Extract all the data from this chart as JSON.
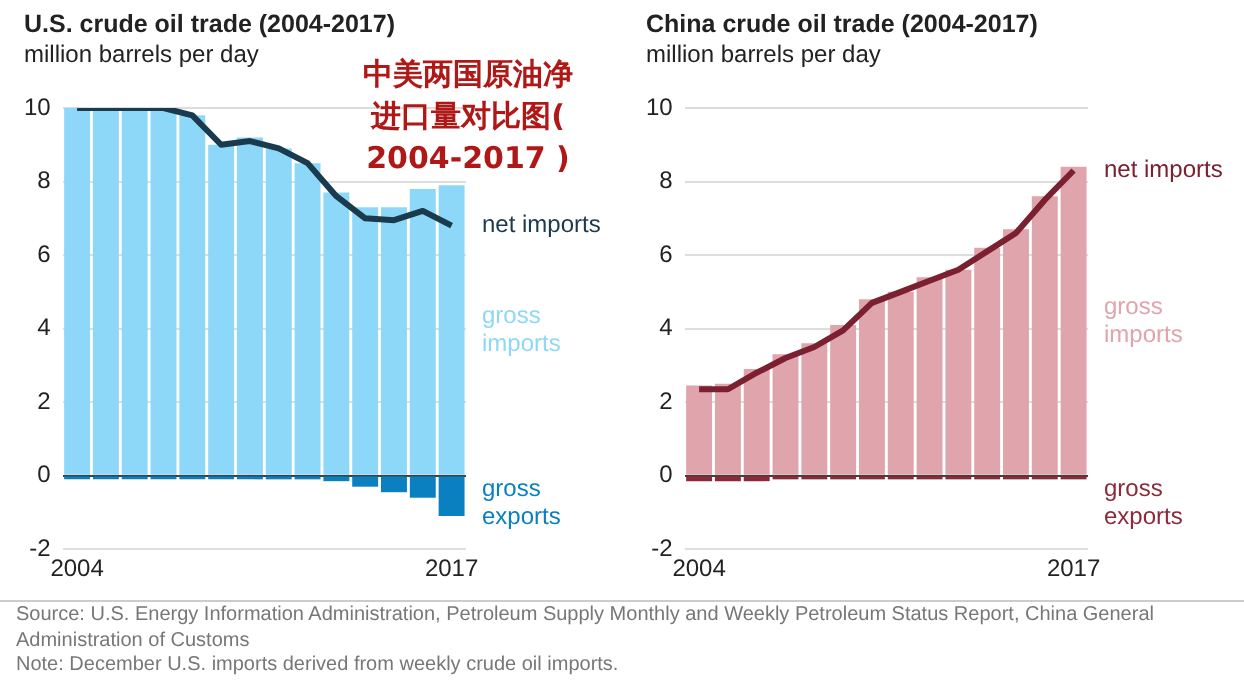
{
  "chart_data": [
    {
      "type": "bar",
      "title": "U.S. crude oil trade (2004-2017)",
      "subtitle": "million barrels per day",
      "annotations": [
        "中美两国原油净进口量对比图( 2004-2017 )"
      ],
      "categories": [
        "2004",
        null,
        null,
        null,
        null,
        null,
        null,
        null,
        null,
        null,
        null,
        null,
        null,
        "2017"
      ],
      "stacked": true,
      "ylim": [
        -2,
        10
      ],
      "yticks": [
        -2,
        0,
        2,
        4,
        6,
        8,
        10
      ],
      "grid": "y",
      "legend": false,
      "series": [
        {
          "name": "gross imports",
          "color": "#8dd8f8",
          "values": [
            10.0,
            10.0,
            10.0,
            10.0,
            9.8,
            9.0,
            9.2,
            8.9,
            8.5,
            7.7,
            7.3,
            7.3,
            7.8,
            7.9
          ]
        },
        {
          "name": "gross exports",
          "color": "#0a80c0",
          "values": [
            -0.1,
            -0.1,
            -0.1,
            -0.1,
            -0.1,
            -0.1,
            -0.1,
            -0.1,
            -0.1,
            -0.15,
            -0.3,
            -0.45,
            -0.6,
            -1.1
          ]
        },
        {
          "name": "net imports",
          "type": "line",
          "color": "#1a3a4e",
          "values": [
            10.0,
            10.0,
            10.0,
            10.0,
            9.8,
            9.0,
            9.1,
            8.9,
            8.5,
            7.6,
            7.0,
            6.95,
            7.2,
            6.8
          ]
        }
      ]
    },
    {
      "type": "bar",
      "title": "China crude oil trade (2004-2017)",
      "subtitle": "million barrels per day",
      "annotations": [
        "Source: U.S. Energy Information Administration, Petroleum Supply Monthly and Weekly Petroleum Status Report, China General Administration of Customs",
        "Note: December U.S. imports derived from weekly crude oil imports."
      ],
      "categories": [
        "2004",
        null,
        null,
        null,
        null,
        null,
        null,
        null,
        null,
        null,
        null,
        null,
        null,
        "2017"
      ],
      "stacked": true,
      "ylim": [
        -2,
        10
      ],
      "yticks": [
        -2,
        0,
        2,
        4,
        6,
        8,
        10
      ],
      "grid": "y",
      "legend": false,
      "series": [
        {
          "name": "gross imports",
          "color": "#e0a4ac",
          "values": [
            2.45,
            2.5,
            2.9,
            3.3,
            3.6,
            4.1,
            4.8,
            5.0,
            5.4,
            5.6,
            6.2,
            6.7,
            7.6,
            8.4
          ]
        },
        {
          "name": "gross exports",
          "color": "#8c2a3a",
          "values": [
            -0.15,
            -0.15,
            -0.15,
            -0.1,
            -0.1,
            -0.1,
            -0.1,
            -0.1,
            -0.1,
            -0.1,
            -0.1,
            -0.1,
            -0.1,
            -0.1
          ]
        },
        {
          "name": "net imports",
          "type": "line",
          "color": "#7a2030",
          "values": [
            2.35,
            2.35,
            2.8,
            3.2,
            3.5,
            3.95,
            4.7,
            5.0,
            5.3,
            5.6,
            6.1,
            6.6,
            7.5,
            8.3
          ]
        }
      ]
    }
  ]
}
